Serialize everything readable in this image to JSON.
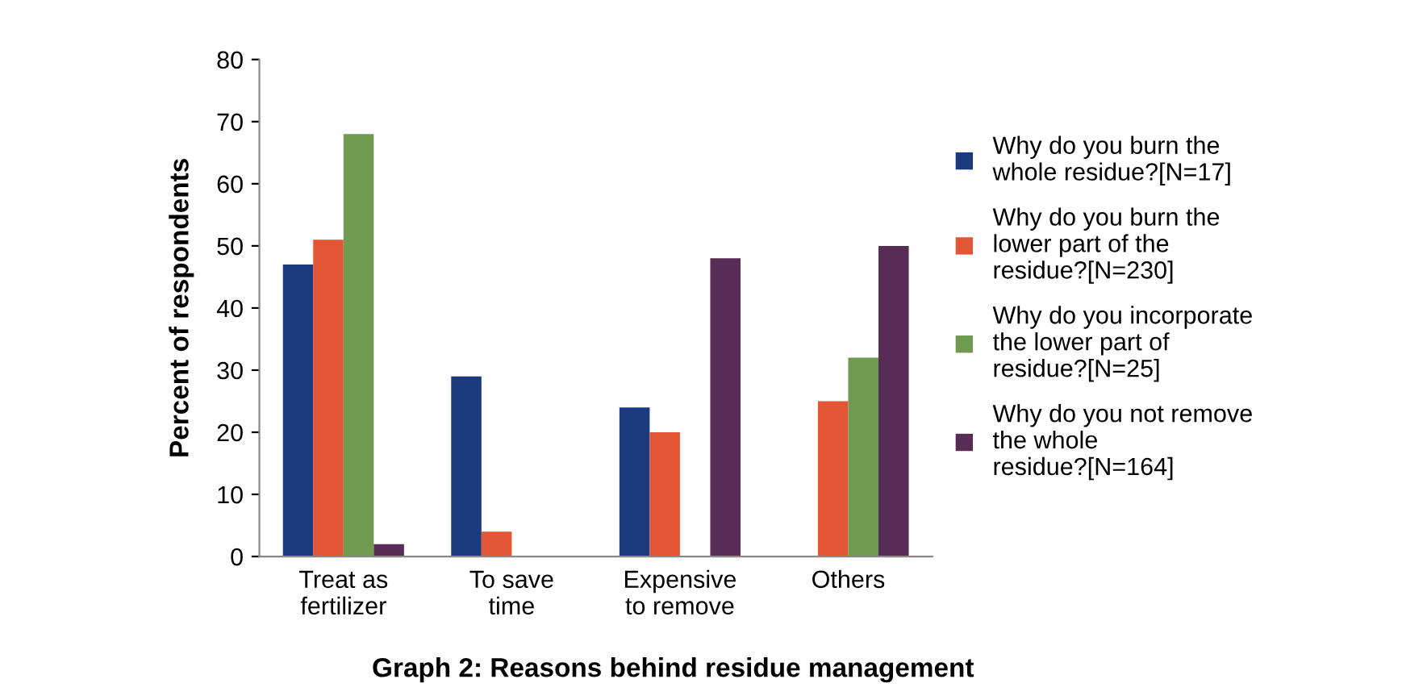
{
  "chart_data": {
    "type": "bar",
    "title": "Graph 2: Reasons behind residue management",
    "ylabel": "Percent of respondents",
    "categories": [
      "Treat as\nfertilizer",
      "To save\ntime",
      "Expensive\nto remove",
      "Others"
    ],
    "series": [
      {
        "name": "Why do you burn the\nwhole residue?[N=17]",
        "color": "#1c3a7e",
        "values": [
          47,
          29,
          24,
          null
        ]
      },
      {
        "name": "Why do you burn the\nlower part of the\nresidue?[N=230]",
        "color": "#e25535",
        "values": [
          51,
          4,
          20,
          25
        ]
      },
      {
        "name": "Why do you incorporate\nthe lower part of\nresidue?[N=25]",
        "color": "#6f9a50",
        "values": [
          68,
          null,
          null,
          32
        ]
      },
      {
        "name": "Why do you not remove\nthe whole\nresidue?[N=164]",
        "color": "#582d55",
        "values": [
          2,
          null,
          48,
          50
        ]
      }
    ],
    "ylim": [
      0,
      80
    ],
    "yticks": [
      0,
      10,
      20,
      30,
      40,
      50,
      60,
      70,
      80
    ],
    "grid": false,
    "legend": "right"
  }
}
